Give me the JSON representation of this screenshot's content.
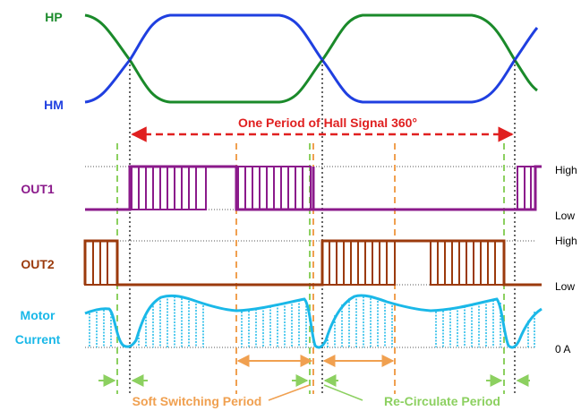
{
  "signals": {
    "hp": "HP",
    "hm": "HM",
    "out1": "OUT1",
    "out2": "OUT2",
    "motor_current": [
      "Motor",
      "Current"
    ]
  },
  "levels": {
    "out1_high": "High",
    "out1_low": "Low",
    "out2_high": "High",
    "out2_low": "Low",
    "current_zero": "0 A"
  },
  "annotations": {
    "hall_period": "One Period of Hall Signal 360°",
    "soft_switching": "Soft Switching Period",
    "recirculate": "Re-Circulate Period"
  },
  "colors": {
    "hp": "#1a8a2a",
    "hm": "#1f3fe0",
    "out1": "#8b1a8b",
    "out2": "#9b3a0c",
    "motor_current": "#1ab8e8",
    "hall_period": "#e02020",
    "soft_switching": "#f0a050",
    "recirculate": "#8cd060",
    "guide": "#333333"
  }
}
